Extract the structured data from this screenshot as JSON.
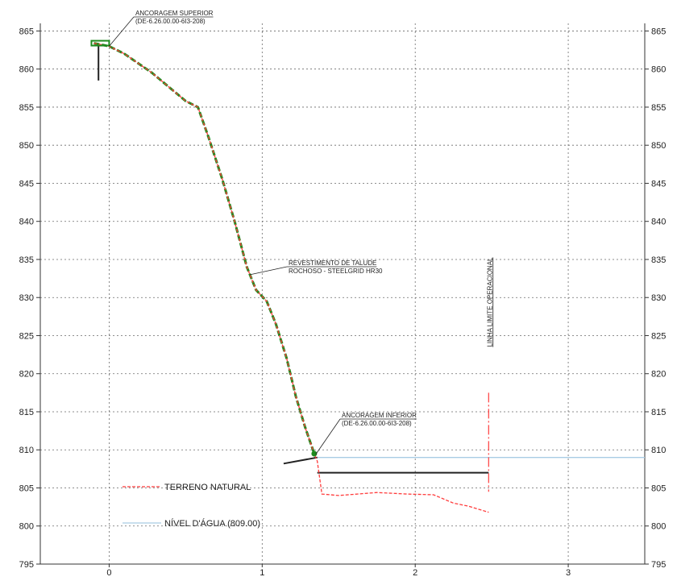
{
  "chart_data": {
    "type": "line",
    "title": "",
    "xlabel": "",
    "ylabel": "",
    "xlim": [
      -0.45,
      3.5
    ],
    "ylim": [
      795,
      866
    ],
    "x_ticks": [
      "0",
      "1",
      "2",
      "3"
    ],
    "y_ticks": [
      "865",
      "860",
      "855",
      "850",
      "845",
      "840",
      "835",
      "830",
      "825",
      "820",
      "815",
      "810",
      "805",
      "800",
      "795"
    ],
    "grid": true,
    "series": [
      {
        "name": "TERRENO NATURAL",
        "color": "#ff3b3b",
        "points": [
          [
            -0.1,
            863.4
          ],
          [
            0,
            863.0
          ],
          [
            0.1,
            862.0
          ],
          [
            0.28,
            859.5
          ],
          [
            0.5,
            855.8
          ],
          [
            0.58,
            855.0
          ],
          [
            0.65,
            851.0
          ],
          [
            0.74,
            845.5
          ],
          [
            0.82,
            840.0
          ],
          [
            0.9,
            834.0
          ],
          [
            0.96,
            831.0
          ],
          [
            1.03,
            829.5
          ],
          [
            1.09,
            826.5
          ],
          [
            1.16,
            822.0
          ],
          [
            1.22,
            817.0
          ],
          [
            1.28,
            813.0
          ],
          [
            1.34,
            809.5
          ],
          [
            1.36,
            808.5
          ],
          [
            1.39,
            804.2
          ],
          [
            1.5,
            804.0
          ],
          [
            1.75,
            804.4
          ],
          [
            1.95,
            804.2
          ],
          [
            2.12,
            804.1
          ],
          [
            2.25,
            803.0
          ],
          [
            2.35,
            802.6
          ],
          [
            2.48,
            801.8
          ]
        ]
      },
      {
        "name": "REVESTIMENTO DE TALUDE ROCHOSO - STEELGRID HR30",
        "color": "#1e8a1e",
        "points": [
          [
            -0.1,
            863.4
          ],
          [
            0,
            863.0
          ],
          [
            0.1,
            862.0
          ],
          [
            0.28,
            859.5
          ],
          [
            0.5,
            855.8
          ],
          [
            0.58,
            855.0
          ],
          [
            0.65,
            851.0
          ],
          [
            0.74,
            845.5
          ],
          [
            0.82,
            840.0
          ],
          [
            0.9,
            834.0
          ],
          [
            0.96,
            831.0
          ],
          [
            1.03,
            829.5
          ],
          [
            1.09,
            826.5
          ],
          [
            1.16,
            822.0
          ],
          [
            1.22,
            817.0
          ],
          [
            1.28,
            813.0
          ],
          [
            1.34,
            809.5
          ]
        ]
      },
      {
        "name": "NÍVEL D'ÁGUA (809.00)",
        "color": "#a9cce4",
        "points": [
          [
            1.34,
            809.0
          ],
          [
            3.5,
            809.0
          ]
        ]
      },
      {
        "name": "LINHA LIMITE OPERACIONAL",
        "color": "#ff3b3b",
        "points": [
          [
            2.48,
            817.5
          ],
          [
            2.48,
            804.5
          ]
        ]
      }
    ],
    "extra_lines": [
      {
        "color": "#222222",
        "points": [
          [
            -0.07,
            863.2
          ],
          [
            -0.07,
            858.5
          ]
        ]
      },
      {
        "color": "#222222",
        "points": [
          [
            1.14,
            808.2
          ],
          [
            1.36,
            809.0
          ]
        ]
      },
      {
        "color": "#222222",
        "points": [
          [
            1.36,
            807.0
          ],
          [
            2.48,
            807.0
          ]
        ]
      }
    ],
    "annotations": [
      {
        "text": "ANCORAGEM SUPERIOR",
        "text2": "(DE-6.26.00.00-6I3-208)",
        "target": [
          0,
          863.0
        ]
      },
      {
        "text": "REVESTIMENTO DE TALUDE",
        "text2": "ROCHOSO - STEELGRID HR30",
        "target": [
          0.92,
          833.0
        ]
      },
      {
        "text": "ANCORAGEM INFERIOR",
        "text2": "(DE-6.26.00.00-6I3-208)",
        "target": [
          1.35,
          809.4
        ]
      },
      {
        "text": "LINHA LIMITE OPERACIONAL"
      }
    ],
    "legend": {
      "placement": "bottom-left",
      "entries": [
        {
          "label": "TERRENO NATURAL",
          "color": "#ff3b3b",
          "style": "dashed"
        },
        {
          "label": "NÍVEL D'ÁGUA (809.00)",
          "color": "#a9cce4",
          "style": "solid"
        }
      ]
    }
  }
}
